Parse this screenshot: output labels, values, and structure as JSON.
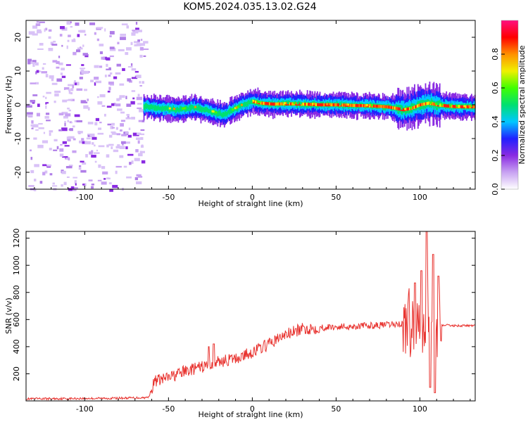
{
  "title": "KOM5.2024.035.13.02.G24",
  "chart_data": [
    {
      "type": "heatmap",
      "name": "spectrogram",
      "xlabel": "Height of straight line (km)",
      "ylabel": "Frequency (Hz)",
      "xlim": [
        -135,
        133
      ],
      "ylim": [
        -25,
        25
      ],
      "xticks": [
        -100,
        -50,
        0,
        50,
        100
      ],
      "yticks": [
        -20,
        -10,
        0,
        10,
        20
      ],
      "colorbar": {
        "label": "Normalized spectral amplitude",
        "range": [
          0,
          1
        ],
        "ticks": [
          "0.0",
          "0.2",
          "0.4",
          "0.6",
          "0.8"
        ],
        "colors": [
          "#ffffff",
          "#c8a2f2",
          "#8a2be2",
          "#2020ff",
          "#00c8ff",
          "#00e070",
          "#40ff00",
          "#f0f000",
          "#ff9000",
          "#ff0000",
          "#ff1080"
        ]
      },
      "ridge": {
        "x": [
          -65,
          -55,
          -45,
          -35,
          -28,
          -22,
          -17,
          -12,
          -6,
          0,
          5,
          12,
          20,
          30,
          40,
          50,
          60,
          70,
          80,
          85,
          90,
          95,
          100,
          105,
          110,
          115,
          120,
          125,
          133
        ],
        "freq_hz": [
          -0.5,
          -1,
          -1.5,
          -0.8,
          -1.5,
          -2.5,
          -3,
          -1.5,
          0,
          1,
          0.5,
          0.2,
          0.3,
          0.2,
          0,
          0,
          -0.2,
          -0.3,
          -0.6,
          -1,
          -1.5,
          -1,
          0,
          0.5,
          0,
          -0.3,
          -0.5,
          -0.6,
          -0.6
        ]
      },
      "noise_region_xlim": [
        -135,
        -65
      ]
    },
    {
      "type": "line",
      "name": "snr",
      "xlabel": "Height of straight line (km)",
      "ylabel": "SNR (v/v)",
      "xlim": [
        -135,
        133
      ],
      "ylim": [
        0,
        1250
      ],
      "xticks": [
        -100,
        -50,
        0,
        50,
        100
      ],
      "yticks": [
        200,
        400,
        600,
        800,
        1000,
        1200
      ],
      "color": "#e8322e",
      "trend": {
        "x": [
          -135,
          -100,
          -80,
          -62,
          -58,
          -50,
          -40,
          -30,
          -20,
          -10,
          0,
          10,
          20,
          30,
          40,
          50,
          60,
          70,
          80,
          90,
          95,
          100,
          105,
          110,
          113,
          120,
          133
        ],
        "y": [
          15,
          18,
          20,
          25,
          150,
          170,
          220,
          250,
          290,
          310,
          360,
          420,
          490,
          530,
          540,
          545,
          550,
          555,
          560,
          570,
          580,
          600,
          640,
          580,
          560,
          555,
          555
        ]
      },
      "spikes": [
        {
          "x": -26,
          "y": 400
        },
        {
          "x": -23,
          "y": 420
        },
        {
          "x": 97,
          "y": 870
        },
        {
          "x": 101,
          "y": 960
        },
        {
          "x": 104,
          "y": 1250
        },
        {
          "x": 106,
          "y": 100
        },
        {
          "x": 108,
          "y": 1080
        },
        {
          "x": 109,
          "y": 60
        },
        {
          "x": 111,
          "y": 920
        }
      ]
    }
  ]
}
